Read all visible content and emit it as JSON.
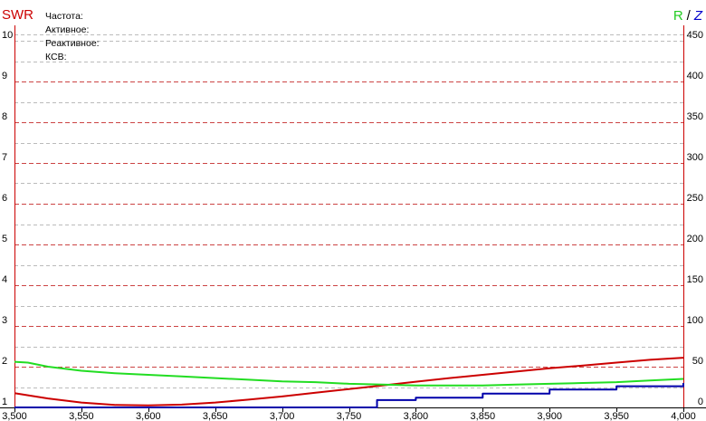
{
  "chart_data": {
    "type": "line",
    "xlim": [
      3500,
      4000
    ],
    "x_ticks": [
      "3,500",
      "3,550",
      "3,600",
      "3,650",
      "3,700",
      "3,750",
      "3,800",
      "3,850",
      "3,900",
      "3,950",
      "4,000"
    ],
    "left_axis": {
      "title": "SWR",
      "ylim": [
        1,
        10
      ],
      "ticks": [
        "1",
        "2",
        "3",
        "4",
        "5",
        "6",
        "7",
        "8",
        "9",
        "10"
      ],
      "color": "#cc0000"
    },
    "right_axis": {
      "title_r": "R",
      "title_sep": "/",
      "title_z": "Z",
      "ylim": [
        0,
        450
      ],
      "ticks": [
        "0",
        "50",
        "100",
        "150",
        "200",
        "250",
        "300",
        "350",
        "400",
        "450"
      ]
    },
    "info_labels": [
      "Частота:",
      "Активное:",
      "Реактивное:",
      "КСВ:"
    ],
    "grid": true,
    "series": [
      {
        "color": "#cc0000",
        "axis": "left",
        "x": [
          3500,
          3525,
          3550,
          3575,
          3600,
          3625,
          3650,
          3675,
          3700,
          3725,
          3750,
          3775,
          3800,
          3825,
          3850,
          3875,
          3900,
          3925,
          3950,
          3975,
          4000
        ],
        "y": [
          1.35,
          1.22,
          1.12,
          1.06,
          1.05,
          1.07,
          1.12,
          1.19,
          1.27,
          1.36,
          1.45,
          1.54,
          1.63,
          1.72,
          1.8,
          1.88,
          1.96,
          2.03,
          2.1,
          2.17,
          2.22
        ]
      },
      {
        "color": "#22dd22",
        "axis": "right",
        "x": [
          3500,
          3510,
          3525,
          3550,
          3575,
          3600,
          3625,
          3650,
          3675,
          3700,
          3725,
          3750,
          3775,
          3800,
          3825,
          3850,
          3875,
          3900,
          3925,
          3950,
          3975,
          4000
        ],
        "y": [
          56,
          55,
          50,
          45,
          42,
          40,
          38,
          36,
          34,
          32,
          31,
          29,
          28,
          27,
          27,
          27,
          28,
          29,
          30,
          31,
          33,
          35
        ]
      },
      {
        "color": "#0000aa",
        "axis": "right",
        "x": [
          3500,
          3600,
          3700,
          3770,
          3771,
          3800,
          3850,
          3900,
          3950,
          4000
        ],
        "y": [
          0,
          0,
          0,
          0,
          9,
          12,
          17,
          22,
          26,
          30
        ]
      }
    ]
  }
}
